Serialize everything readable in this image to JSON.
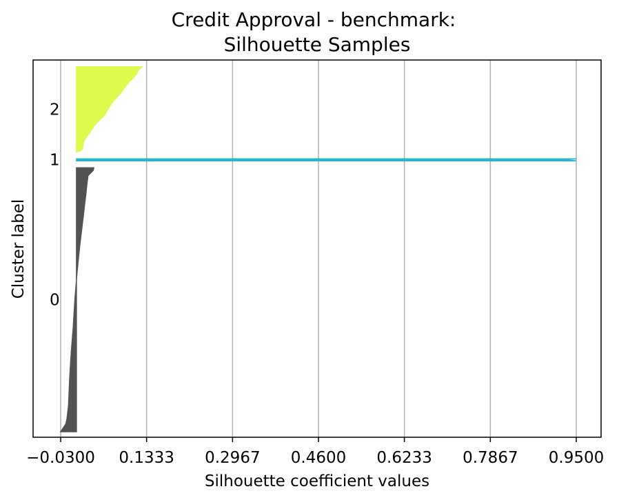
{
  "chart_data": {
    "type": "area",
    "title": "Credit Approval - benchmark:",
    "subtitle": "Silhouette Samples",
    "xlabel": "Silhouette coefficient values",
    "ylabel": "Cluster label",
    "xlim": [
      -0.03,
      0.95
    ],
    "xticks": [
      "−0.0300",
      "0.1333",
      "0.2967",
      "0.4600",
      "0.6233",
      "0.7867",
      "0.9500"
    ],
    "xtick_values": [
      -0.03,
      0.1333,
      0.2967,
      0.46,
      0.6233,
      0.7867,
      0.95
    ],
    "grid": "vertical",
    "clusters": [
      {
        "label": "0",
        "color": "#4a4a4a",
        "samples": 480,
        "max": 0.033,
        "min": -0.03,
        "profile": [
          [
            0.0,
            0.033
          ],
          [
            0.01,
            0.032
          ],
          [
            0.03,
            0.022
          ],
          [
            0.06,
            0.02
          ],
          [
            0.1,
            0.018
          ],
          [
            0.15,
            0.015
          ],
          [
            0.2,
            0.012
          ],
          [
            0.3,
            0.006
          ],
          [
            0.4,
            0.001
          ],
          [
            0.5,
            -0.003
          ],
          [
            0.6,
            -0.006
          ],
          [
            0.7,
            -0.01
          ],
          [
            0.8,
            -0.013
          ],
          [
            0.9,
            -0.015
          ],
          [
            0.95,
            -0.018
          ],
          [
            0.97,
            -0.02
          ],
          [
            0.985,
            -0.025
          ],
          [
            1.0,
            -0.03
          ]
        ]
      },
      {
        "label": "1",
        "color": "#22b3c5",
        "samples": 2,
        "max": 0.95,
        "profile": [
          [
            0.0,
            0.95
          ],
          [
            0.5,
            0.93
          ],
          [
            1.0,
            0.95
          ]
        ]
      },
      {
        "label": "2",
        "color": "#dcfa46",
        "samples": 155,
        "max": 0.125,
        "profile": [
          [
            0.0,
            0.125
          ],
          [
            0.04,
            0.118
          ],
          [
            0.08,
            0.115
          ],
          [
            0.12,
            0.11
          ],
          [
            0.18,
            0.1
          ],
          [
            0.26,
            0.09
          ],
          [
            0.34,
            0.08
          ],
          [
            0.42,
            0.068
          ],
          [
            0.5,
            0.06
          ],
          [
            0.58,
            0.052
          ],
          [
            0.65,
            0.04
          ],
          [
            0.7,
            0.033
          ],
          [
            0.75,
            0.028
          ],
          [
            0.8,
            0.022
          ],
          [
            0.85,
            0.016
          ],
          [
            0.9,
            0.013
          ],
          [
            0.95,
            0.012
          ],
          [
            0.98,
            0.01
          ],
          [
            1.0,
            0.002
          ]
        ]
      }
    ]
  }
}
